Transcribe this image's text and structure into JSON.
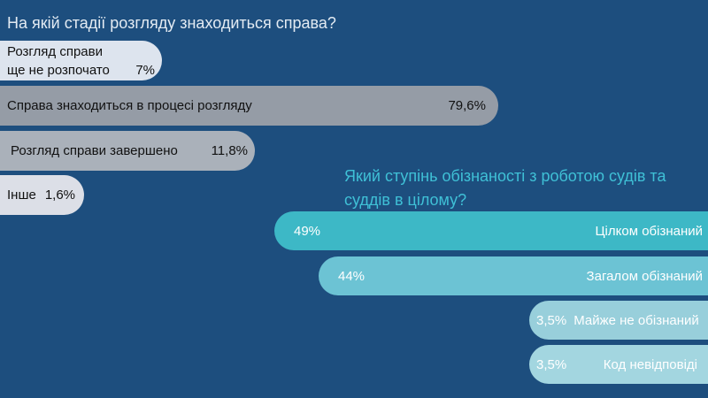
{
  "chart_data": [
    {
      "type": "bar",
      "orientation": "horizontal",
      "title": "На якій стадії розгляду знаходиться справа?",
      "categories": [
        "Розгляд справи\nще не розпочато",
        "Справа знаходиться в процесі розгляду",
        "Розгляд справи завершено",
        "Інше"
      ],
      "values": [
        7,
        79.6,
        11.8,
        1.6
      ],
      "value_labels": [
        "7%",
        "79,6%",
        "11,8%",
        "1,6%"
      ],
      "colors": [
        "#dde4ee",
        "#959ca6",
        "#aab1ba",
        "#dcdfe7"
      ]
    },
    {
      "type": "bar",
      "orientation": "horizontal",
      "title": "Який ступінь обізнаності з роботою судів та суддів в цілому?",
      "categories": [
        "Цілком обізнаний",
        "Загалом обізнаний",
        "Майже не обізнаний",
        "Код невідповіді"
      ],
      "values": [
        49,
        44,
        3.5,
        3.5
      ],
      "value_labels": [
        "49%",
        "44%",
        "3,5%",
        "3,5%"
      ],
      "colors": [
        "#3db8c6",
        "#6cc3d4",
        "#98cfdb",
        "#a3d6e0"
      ]
    }
  ]
}
